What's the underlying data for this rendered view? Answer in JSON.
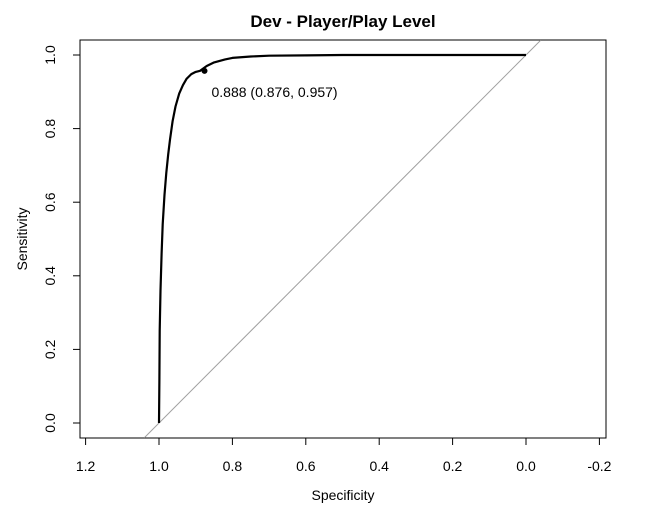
{
  "chart_data": {
    "type": "line",
    "title": "Dev - Player/Play Level",
    "xlabel": "Specificity",
    "ylabel": "Sensitivity",
    "x_reversed": true,
    "xlim": [
      1.04,
      -0.04
    ],
    "ylim": [
      0,
      1
    ],
    "x_ticks": [
      1.2,
      1.0,
      0.8,
      0.6,
      0.4,
      0.2,
      0.0,
      -0.2
    ],
    "x_tick_labels": [
      "1.2",
      "1.0",
      "0.8",
      "0.6",
      "0.4",
      "0.2",
      "0.0",
      "-0.2"
    ],
    "y_ticks": [
      0.0,
      0.2,
      0.4,
      0.6,
      0.8,
      1.0
    ],
    "y_tick_labels": [
      "0.0",
      "0.2",
      "0.4",
      "0.6",
      "0.8",
      "1.0"
    ],
    "grid": false,
    "legend": "none",
    "series": [
      {
        "line_color": "#000000",
        "x": [
          1.0,
          0.999,
          0.998,
          0.996,
          0.993,
          0.99,
          0.985,
          0.98,
          0.975,
          0.97,
          0.963,
          0.955,
          0.945,
          0.935,
          0.925,
          0.912,
          0.9,
          0.888,
          0.87,
          0.85,
          0.82,
          0.8,
          0.75,
          0.7,
          0.6,
          0.5,
          0.3,
          0.1,
          0.0
        ],
        "y": [
          0.0,
          0.12,
          0.25,
          0.36,
          0.46,
          0.54,
          0.62,
          0.68,
          0.73,
          0.77,
          0.82,
          0.86,
          0.895,
          0.918,
          0.935,
          0.948,
          0.954,
          0.957,
          0.97,
          0.98,
          0.988,
          0.992,
          0.996,
          0.998,
          0.999,
          1.0,
          1.0,
          1.0,
          1.0
        ]
      }
    ],
    "reference_line": {
      "from": [
        1.0,
        0.0
      ],
      "to": [
        0.0,
        1.0
      ],
      "color": "#a0a0a0"
    },
    "point": {
      "x": 0.876,
      "y": 0.957
    },
    "annotation": "0.888 (0.876, 0.957)"
  }
}
